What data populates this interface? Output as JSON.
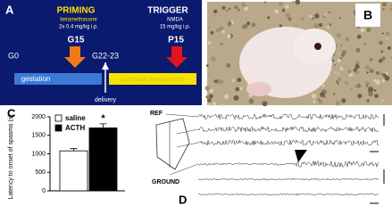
{
  "panel_labels": [
    "A",
    "B",
    "C",
    "D"
  ],
  "priming": {
    "title": "PRIMING",
    "drug": "betamethasone",
    "dose": "2x 0.4 mg/kg i.p.",
    "time": "G15"
  },
  "trigger": {
    "title": "TRIGGER",
    "drug": "NMDA",
    "dose": "15 mg/kg i.p.",
    "time": "P15"
  },
  "timeline": {
    "start": "G0",
    "birth": "G22-23",
    "gestation": "gestation",
    "postnatal": "postnatal development",
    "delivery": "delivery"
  },
  "electrodes": {
    "ref": "REF",
    "ground": "GROUND"
  },
  "chart_data": {
    "type": "bar",
    "ylabel": "Latency to onset of spasms (s)",
    "categories": [
      "saline",
      "ACTH"
    ],
    "values": [
      1080,
      1700
    ],
    "errors": [
      60,
      110
    ],
    "colors": [
      "#ffffff",
      "#000000"
    ],
    "ylim": [
      0,
      2000
    ],
    "yticks": [
      0,
      500,
      1000,
      1500,
      2000
    ],
    "annotation": "*"
  }
}
